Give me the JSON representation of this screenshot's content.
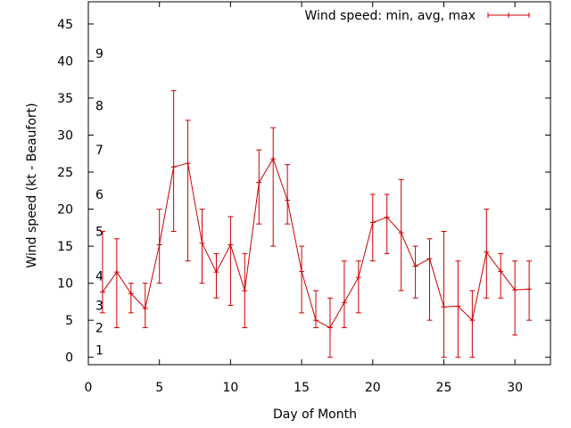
{
  "chart_data": {
    "type": "line",
    "title": "",
    "xlabel": "Day of Month",
    "ylabel": "Wind speed (kt - Beaufort)",
    "xlim": [
      0,
      32.5
    ],
    "ylim": [
      -1,
      48
    ],
    "xticks": [
      0,
      5,
      10,
      15,
      20,
      25,
      30
    ],
    "yticks": [
      0,
      5,
      10,
      15,
      20,
      25,
      30,
      35,
      40,
      45
    ],
    "grid": false,
    "legend": {
      "position": "top-right",
      "label": "Wind speed: min, avg, max"
    },
    "series_color": "#cc0000",
    "beaufort_scale": [
      {
        "label": "1",
        "kt": 1
      },
      {
        "label": "2",
        "kt": 4
      },
      {
        "label": "3",
        "kt": 7
      },
      {
        "label": "4",
        "kt": 11
      },
      {
        "label": "5",
        "kt": 17
      },
      {
        "label": "6",
        "kt": 22
      },
      {
        "label": "7",
        "kt": 28
      },
      {
        "label": "8",
        "kt": 34
      },
      {
        "label": "9",
        "kt": 41
      }
    ],
    "series": [
      {
        "name": "Wind speed: min, avg, max",
        "x": [
          1,
          2,
          3,
          4,
          5,
          6,
          7,
          8,
          9,
          10,
          11,
          12,
          13,
          14,
          15,
          16,
          17,
          18,
          19,
          20,
          21,
          22,
          23,
          24,
          25,
          26,
          27,
          28,
          29,
          30,
          31
        ],
        "avg": [
          8.8,
          11.5,
          8.6,
          6.6,
          15.2,
          25.7,
          26.2,
          15.4,
          11.5,
          15.2,
          9.0,
          23.6,
          26.8,
          21.2,
          11.6,
          5.0,
          4.0,
          7.4,
          10.8,
          18.2,
          18.9,
          16.8,
          12.3,
          13.3,
          6.8,
          6.9,
          5.0,
          14.2,
          11.6,
          9.1,
          9.2
        ],
        "min": [
          6,
          4,
          6,
          4,
          10,
          17,
          13,
          10,
          8,
          7,
          4,
          18,
          15,
          18,
          6,
          4,
          0,
          4,
          6,
          13,
          14,
          9,
          8,
          5,
          0,
          0,
          0,
          8,
          8,
          3,
          5
        ],
        "max": [
          17,
          16,
          10,
          10,
          20,
          36,
          32,
          20,
          14,
          19,
          14,
          28,
          31,
          26,
          15,
          9,
          8,
          13,
          13,
          22,
          22,
          24,
          15,
          16,
          17,
          13,
          9,
          20,
          14,
          13,
          13
        ]
      }
    ]
  }
}
